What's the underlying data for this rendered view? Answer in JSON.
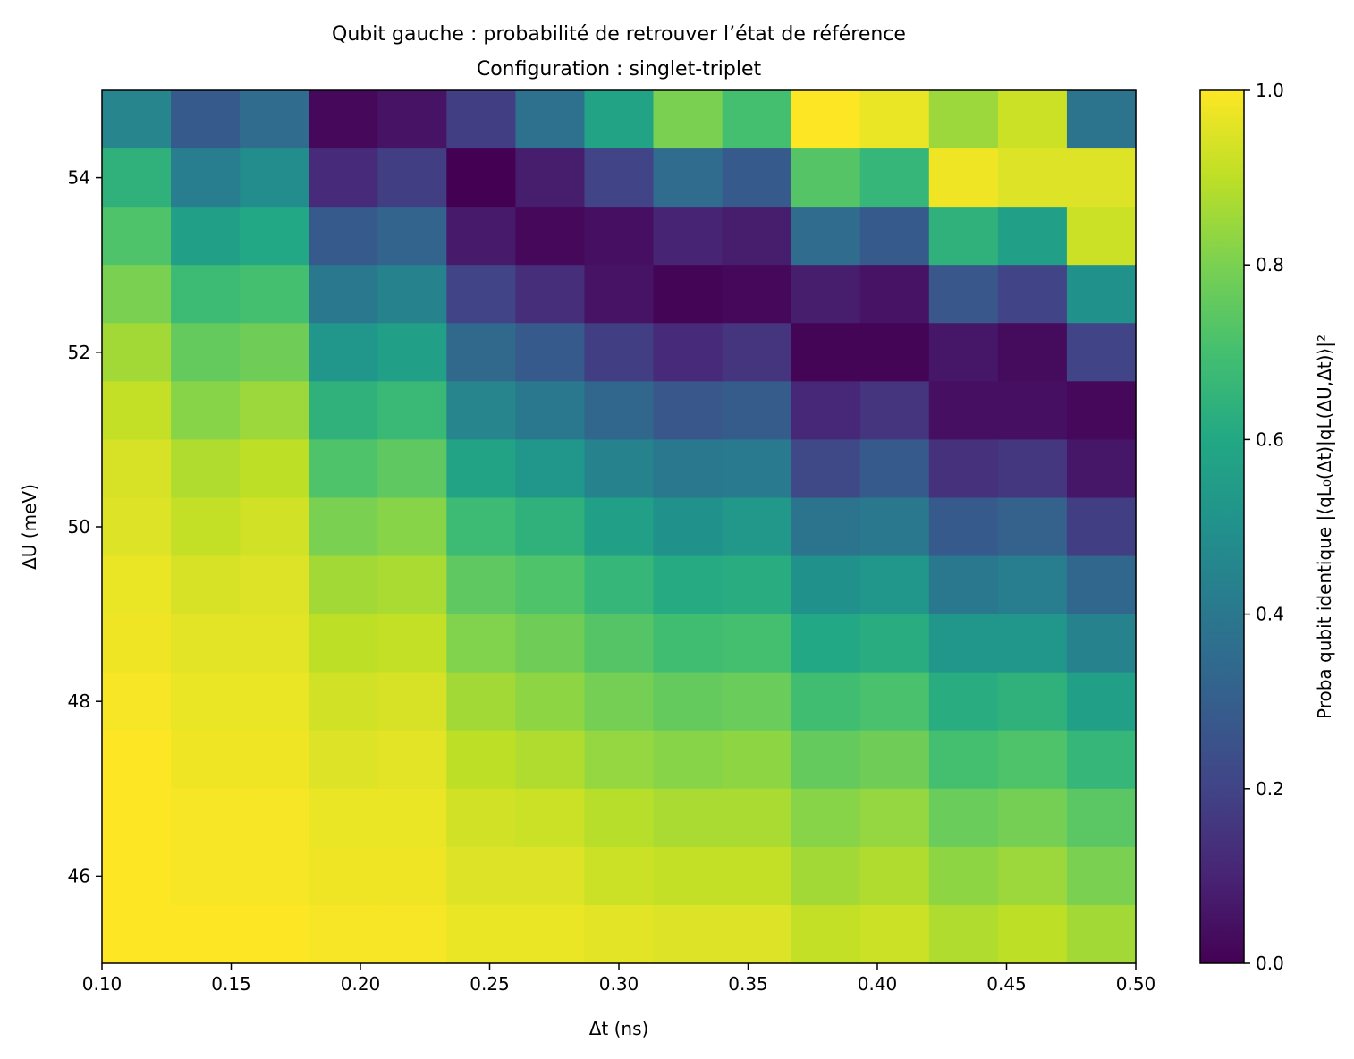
{
  "chart_data": {
    "type": "heatmap",
    "title": "Qubit gauche : probabilité de retrouver l’état de référence",
    "subtitle": "Configuration : singlet-triplet",
    "xlabel": "Δt (ns)",
    "ylabel": "ΔU (meV)",
    "colorbar_label": "Proba qubit identique  |⟨qL₀(Δt)|qL(ΔU,Δt)⟩|²",
    "colormap": "viridis",
    "grid": false,
    "xlim": [
      0.1,
      0.5
    ],
    "ylim": [
      45,
      55
    ],
    "clim": [
      0,
      1
    ],
    "x_ticks": [
      0.1,
      0.15,
      0.2,
      0.25,
      0.3,
      0.35,
      0.4,
      0.45,
      0.5
    ],
    "x_tick_labels": [
      "0.10",
      "0.15",
      "0.20",
      "0.25",
      "0.30",
      "0.35",
      "0.40",
      "0.45",
      "0.50"
    ],
    "y_ticks": [
      46,
      48,
      50,
      52,
      54
    ],
    "y_tick_labels": [
      "46",
      "48",
      "50",
      "52",
      "54"
    ],
    "colorbar_ticks": [
      0,
      0.2,
      0.4,
      0.6,
      0.8,
      1.0
    ],
    "colorbar_tick_labels": [
      "0.0",
      "0.2",
      "0.4",
      "0.6",
      "0.8",
      "1.0"
    ],
    "x_bins": 15,
    "y_bins": 15,
    "z_rows_top_to_bottom": [
      [
        0.45,
        0.28,
        0.35,
        0.02,
        0.05,
        0.18,
        0.37,
        0.58,
        0.8,
        0.7,
        1.0,
        0.97,
        0.85,
        0.92,
        0.38
      ],
      [
        0.64,
        0.42,
        0.48,
        0.12,
        0.18,
        0.0,
        0.08,
        0.2,
        0.35,
        0.28,
        0.73,
        0.66,
        0.98,
        0.95,
        0.95
      ],
      [
        0.72,
        0.56,
        0.6,
        0.28,
        0.32,
        0.07,
        0.02,
        0.04,
        0.1,
        0.08,
        0.35,
        0.28,
        0.64,
        0.56,
        0.92
      ],
      [
        0.8,
        0.68,
        0.7,
        0.4,
        0.44,
        0.2,
        0.13,
        0.05,
        0.01,
        0.02,
        0.08,
        0.05,
        0.27,
        0.2,
        0.5
      ],
      [
        0.86,
        0.76,
        0.78,
        0.52,
        0.56,
        0.34,
        0.28,
        0.18,
        0.12,
        0.15,
        0.01,
        0.01,
        0.06,
        0.03,
        0.2
      ],
      [
        0.91,
        0.82,
        0.85,
        0.64,
        0.67,
        0.45,
        0.4,
        0.33,
        0.27,
        0.29,
        0.11,
        0.15,
        0.04,
        0.04,
        0.02
      ],
      [
        0.94,
        0.88,
        0.9,
        0.72,
        0.75,
        0.58,
        0.52,
        0.44,
        0.4,
        0.41,
        0.22,
        0.28,
        0.14,
        0.16,
        0.06
      ],
      [
        0.95,
        0.91,
        0.93,
        0.8,
        0.82,
        0.68,
        0.64,
        0.56,
        0.5,
        0.53,
        0.38,
        0.4,
        0.28,
        0.31,
        0.18
      ],
      [
        0.97,
        0.94,
        0.95,
        0.86,
        0.87,
        0.75,
        0.72,
        0.66,
        0.61,
        0.62,
        0.5,
        0.52,
        0.4,
        0.42,
        0.33
      ],
      [
        0.98,
        0.96,
        0.96,
        0.9,
        0.91,
        0.81,
        0.78,
        0.73,
        0.69,
        0.7,
        0.6,
        0.62,
        0.52,
        0.52,
        0.44
      ],
      [
        0.99,
        0.97,
        0.97,
        0.93,
        0.94,
        0.86,
        0.83,
        0.79,
        0.76,
        0.77,
        0.69,
        0.71,
        0.62,
        0.64,
        0.56
      ],
      [
        1.0,
        0.98,
        0.98,
        0.95,
        0.96,
        0.9,
        0.88,
        0.84,
        0.82,
        0.83,
        0.76,
        0.78,
        0.7,
        0.72,
        0.66
      ],
      [
        1.0,
        0.99,
        0.99,
        0.97,
        0.97,
        0.93,
        0.92,
        0.89,
        0.87,
        0.87,
        0.82,
        0.84,
        0.77,
        0.79,
        0.74
      ],
      [
        1.0,
        0.99,
        0.99,
        0.98,
        0.98,
        0.95,
        0.95,
        0.92,
        0.91,
        0.91,
        0.86,
        0.88,
        0.83,
        0.85,
        0.8
      ],
      [
        1.0,
        1.0,
        1.0,
        0.99,
        0.99,
        0.97,
        0.97,
        0.96,
        0.95,
        0.95,
        0.91,
        0.92,
        0.88,
        0.9,
        0.86
      ]
    ]
  }
}
